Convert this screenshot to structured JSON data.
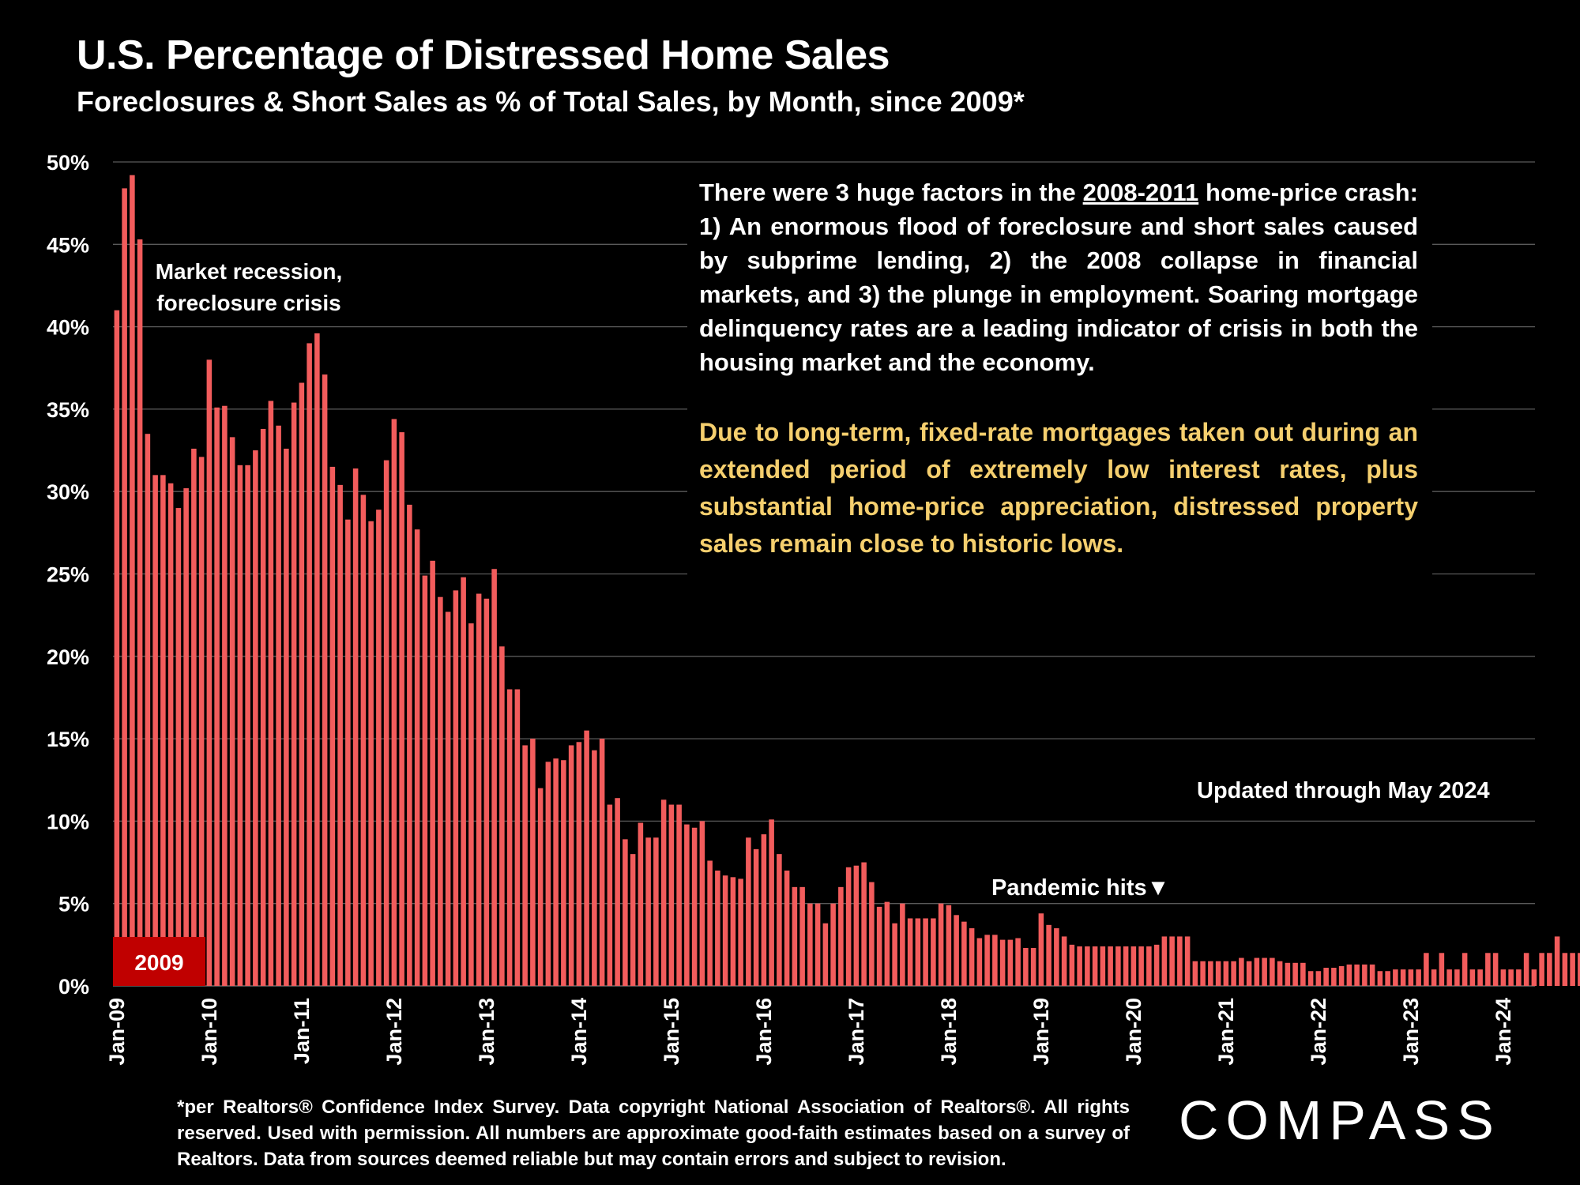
{
  "chart_data": {
    "type": "bar",
    "title": "U.S. Percentage of Distressed Home Sales",
    "subtitle": "Foreclosures & Short Sales as % of Total Sales, by Month, since 2009*",
    "x_start": "Jan-09",
    "x_end": "May-24",
    "x_tick_labels": [
      "Jan-09",
      "Jan-10",
      "Jan-11",
      "Jan-12",
      "Jan-13",
      "Jan-14",
      "Jan-15",
      "Jan-16",
      "Jan-17",
      "Jan-18",
      "Jan-19",
      "Jan-20",
      "Jan-21",
      "Jan-22",
      "Jan-23",
      "Jan-24"
    ],
    "y_tick_labels": [
      "0%",
      "5%",
      "10%",
      "15%",
      "20%",
      "25%",
      "30%",
      "35%",
      "40%",
      "45%",
      "50%"
    ],
    "ylim": [
      0,
      50
    ],
    "grid": true,
    "bar_color": "#f25c5c",
    "highlight_color": "#c00000",
    "values": [
      41,
      48.4,
      49.2,
      45.3,
      33.5,
      31,
      31,
      30.5,
      29,
      30.2,
      32.6,
      32.1,
      38,
      35.1,
      35.2,
      33.3,
      31.6,
      31.6,
      32.5,
      33.8,
      35.5,
      34,
      32.6,
      35.4,
      36.6,
      39,
      39.6,
      37.1,
      31.5,
      30.4,
      28.3,
      31.4,
      29.8,
      28.2,
      28.9,
      31.9,
      34.4,
      33.6,
      29.2,
      27.7,
      24.9,
      25.8,
      23.6,
      22.7,
      24,
      24.8,
      22,
      23.8,
      23.5,
      25.3,
      20.6,
      18,
      18,
      14.6,
      15,
      12,
      13.6,
      13.8,
      13.7,
      14.6,
      14.8,
      15.5,
      14.3,
      15,
      11,
      11.4,
      8.9,
      8,
      9.9,
      9,
      9,
      11.3,
      11,
      11,
      9.8,
      9.6,
      10,
      7.6,
      7,
      6.7,
      6.6,
      6.5,
      9,
      8.3,
      9.2,
      10.1,
      8,
      7,
      6,
      6,
      5,
      5,
      3.8,
      5,
      6,
      7.2,
      7.3,
      7.5,
      6.3,
      4.8,
      5.1,
      3.8,
      5,
      4.1,
      4.1,
      4.1,
      4.1,
      5,
      4.9,
      4.3,
      3.9,
      3.5,
      2.9,
      3.1,
      3.1,
      2.8,
      2.8,
      2.9,
      2.3,
      2.3,
      4.4,
      3.7,
      3.5,
      3,
      2.5,
      2.4,
      2.4,
      2.4,
      2.4,
      2.4,
      2.4,
      2.4,
      2.4,
      2.4,
      2.4,
      2.5,
      3,
      3,
      3,
      3,
      1.5,
      1.5,
      1.5,
      1.5,
      1.5,
      1.5,
      1.7,
      1.5,
      1.7,
      1.7,
      1.7,
      1.5,
      1.4,
      1.4,
      1.4,
      0.9,
      0.9,
      1.1,
      1.1,
      1.2,
      1.3,
      1.3,
      1.3,
      1.3,
      0.9,
      0.9,
      1,
      1,
      1,
      1,
      2,
      1,
      2,
      1,
      1,
      2,
      1,
      1,
      2,
      2,
      1,
      1,
      1,
      2,
      1,
      2,
      2,
      3,
      2,
      2,
      2
    ],
    "annotations": {
      "recession_line1": "Market recession,",
      "recession_line2": "foreclosure crisis",
      "year_box": "2009",
      "pandemic": "Pandemic hits",
      "pandemic_marker": "▼",
      "updated": "Updated through May 2024"
    }
  },
  "text_box": {
    "p1_before": "There were 3 huge factors in the ",
    "p1_underlined": "2008-2011",
    "p1_after": " home-price crash:  1) An enormous flood of foreclosure and short sales caused by subprime lending, 2) the 2008 collapse in financial markets, and 3) the plunge in employment. Soaring mortgage delinquency rates are a leading indicator of crisis in both the housing market and the economy.",
    "p2": "Due to long-term, fixed-rate mortgages taken out during an extended period of extremely low interest rates, plus substantial home-price appreciation, distressed property sales remain close to historic lows."
  },
  "footnote": "*per Realtors® Confidence Index Survey. Data copyright National Association of Realtors®. All rights reserved. Used with permission. All numbers are approximate good-faith estimates based on a survey of Realtors. Data from sources deemed reliable but may contain errors and subject to revision.",
  "logo": "COMPASS"
}
